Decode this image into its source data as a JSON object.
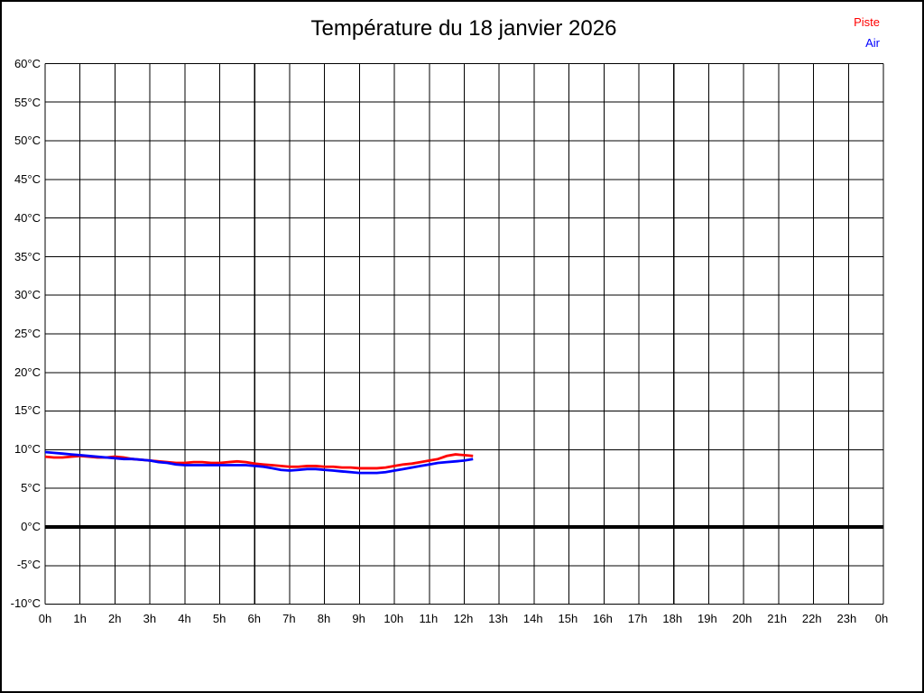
{
  "page": {
    "background_color": "#ffffff",
    "border_color": "#000000"
  },
  "header": {
    "title": "Température du 18 janvier 2026"
  },
  "legend": {
    "position": "top-right",
    "items": [
      {
        "label": "Piste",
        "color": "#ff0000"
      },
      {
        "label": "Air",
        "color": "#0000ff"
      }
    ]
  },
  "chart_data": {
    "type": "line",
    "title": "Température du 18 janvier 2026",
    "xlabel": "",
    "ylabel": "",
    "x_unit": "h",
    "y_unit": "°C",
    "xlim": [
      0,
      24
    ],
    "ylim": [
      -10,
      60
    ],
    "x_tick_step": 1,
    "y_tick_step": 5,
    "grid": true,
    "grid_color": "#000000",
    "zero_line": {
      "value": 0,
      "color": "#000000",
      "width": 4
    },
    "legend_position": "top-right",
    "x_tick_labels": [
      "0h",
      "1h",
      "2h",
      "3h",
      "4h",
      "5h",
      "6h",
      "7h",
      "8h",
      "9h",
      "10h",
      "11h",
      "12h",
      "13h",
      "14h",
      "15h",
      "16h",
      "17h",
      "18h",
      "19h",
      "20h",
      "21h",
      "22h",
      "23h",
      "0h"
    ],
    "y_tick_labels": [
      "60°C",
      "55°C",
      "50°C",
      "45°C",
      "40°C",
      "35°C",
      "30°C",
      "25°C",
      "20°C",
      "15°C",
      "10°C",
      "5°C",
      "0°C",
      "-5°C",
      "-10°C"
    ],
    "x": [
      0,
      0.25,
      0.5,
      0.75,
      1,
      1.25,
      1.5,
      1.75,
      2,
      2.25,
      2.5,
      2.75,
      3,
      3.25,
      3.5,
      3.75,
      4,
      4.25,
      4.5,
      4.75,
      5,
      5.25,
      5.5,
      5.75,
      6,
      6.25,
      6.5,
      6.75,
      7,
      7.25,
      7.5,
      7.75,
      8,
      8.25,
      8.5,
      8.75,
      9,
      9.25,
      9.5,
      9.75,
      10,
      10.25,
      10.5,
      10.75,
      11,
      11.25,
      11.5,
      11.75,
      12,
      12.25
    ],
    "series": [
      {
        "name": "Piste",
        "color": "#ff0000",
        "values": [
          9.1,
          9.0,
          9.0,
          9.1,
          9.2,
          9.1,
          9.0,
          9.0,
          9.1,
          9.0,
          8.8,
          8.7,
          8.6,
          8.5,
          8.4,
          8.3,
          8.3,
          8.4,
          8.4,
          8.3,
          8.3,
          8.4,
          8.5,
          8.4,
          8.2,
          8.1,
          8.0,
          7.9,
          7.8,
          7.8,
          7.9,
          7.9,
          7.8,
          7.8,
          7.7,
          7.7,
          7.6,
          7.6,
          7.6,
          7.7,
          7.9,
          8.1,
          8.2,
          8.4,
          8.6,
          8.8,
          9.2,
          9.4,
          9.3,
          9.2
        ]
      },
      {
        "name": "Air",
        "color": "#0000ff",
        "values": [
          9.7,
          9.6,
          9.5,
          9.4,
          9.3,
          9.2,
          9.1,
          9.0,
          8.9,
          8.8,
          8.8,
          8.7,
          8.6,
          8.4,
          8.3,
          8.1,
          8.0,
          8.0,
          8.0,
          8.0,
          8.0,
          8.0,
          8.0,
          8.0,
          7.9,
          7.8,
          7.6,
          7.4,
          7.3,
          7.4,
          7.5,
          7.5,
          7.4,
          7.3,
          7.2,
          7.1,
          7.0,
          7.0,
          7.0,
          7.1,
          7.3,
          7.5,
          7.7,
          7.9,
          8.1,
          8.3,
          8.4,
          8.5,
          8.6,
          8.8
        ]
      }
    ]
  }
}
